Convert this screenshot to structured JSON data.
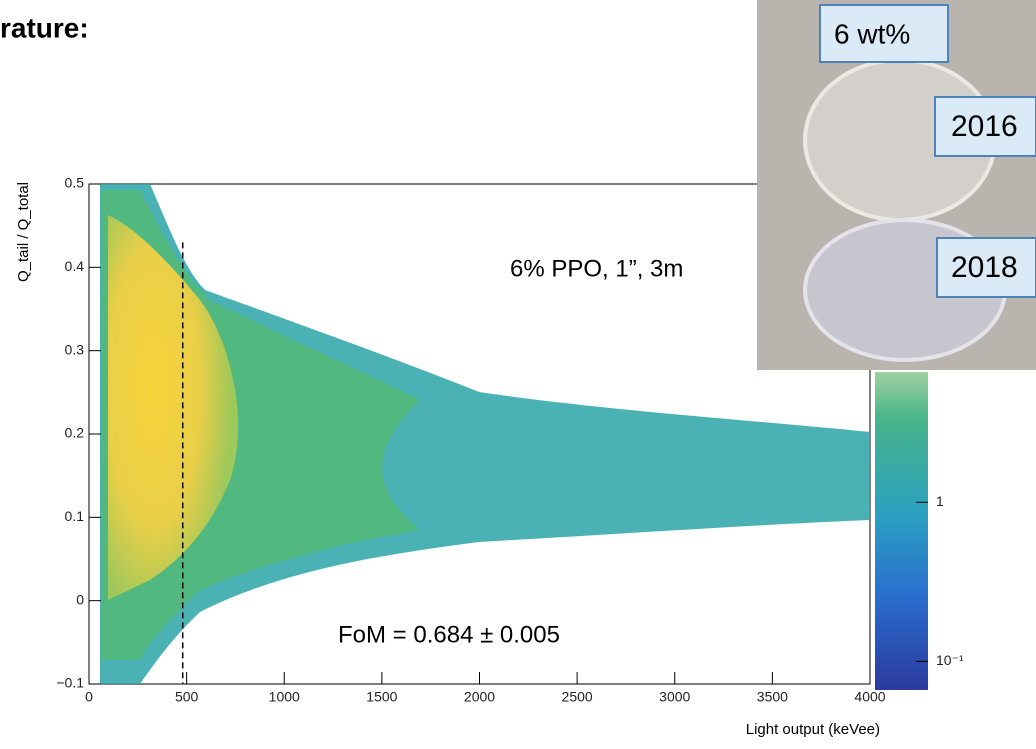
{
  "slide_title": "rature:",
  "chart_data": {
    "type": "density",
    "x_label": "Light output (keVee)",
    "y_label": "Q_tail / Q_total",
    "xlim": [
      0,
      4000
    ],
    "xticks": [
      0,
      500,
      1000,
      1500,
      2000,
      2500,
      3000,
      3500,
      4000
    ],
    "ylim": [
      -0.1,
      0.5
    ],
    "yticks": [
      {
        "value": -0.1,
        "label": "−0.1"
      },
      0,
      0.1,
      0.2,
      0.3,
      0.4,
      0.5
    ],
    "zlim": [
      0.066,
      6.6
    ],
    "zscale": "log",
    "zticks": [
      {
        "value": 0.1,
        "label": "10⁻¹"
      },
      1
    ],
    "cut_x": 480,
    "annotations": [
      "6% PPO, 1”, 3m",
      "FoM = 0.684 ± 0.005"
    ]
  },
  "photo": {
    "labels": [
      "6 wt%",
      "2016",
      "2018"
    ]
  }
}
